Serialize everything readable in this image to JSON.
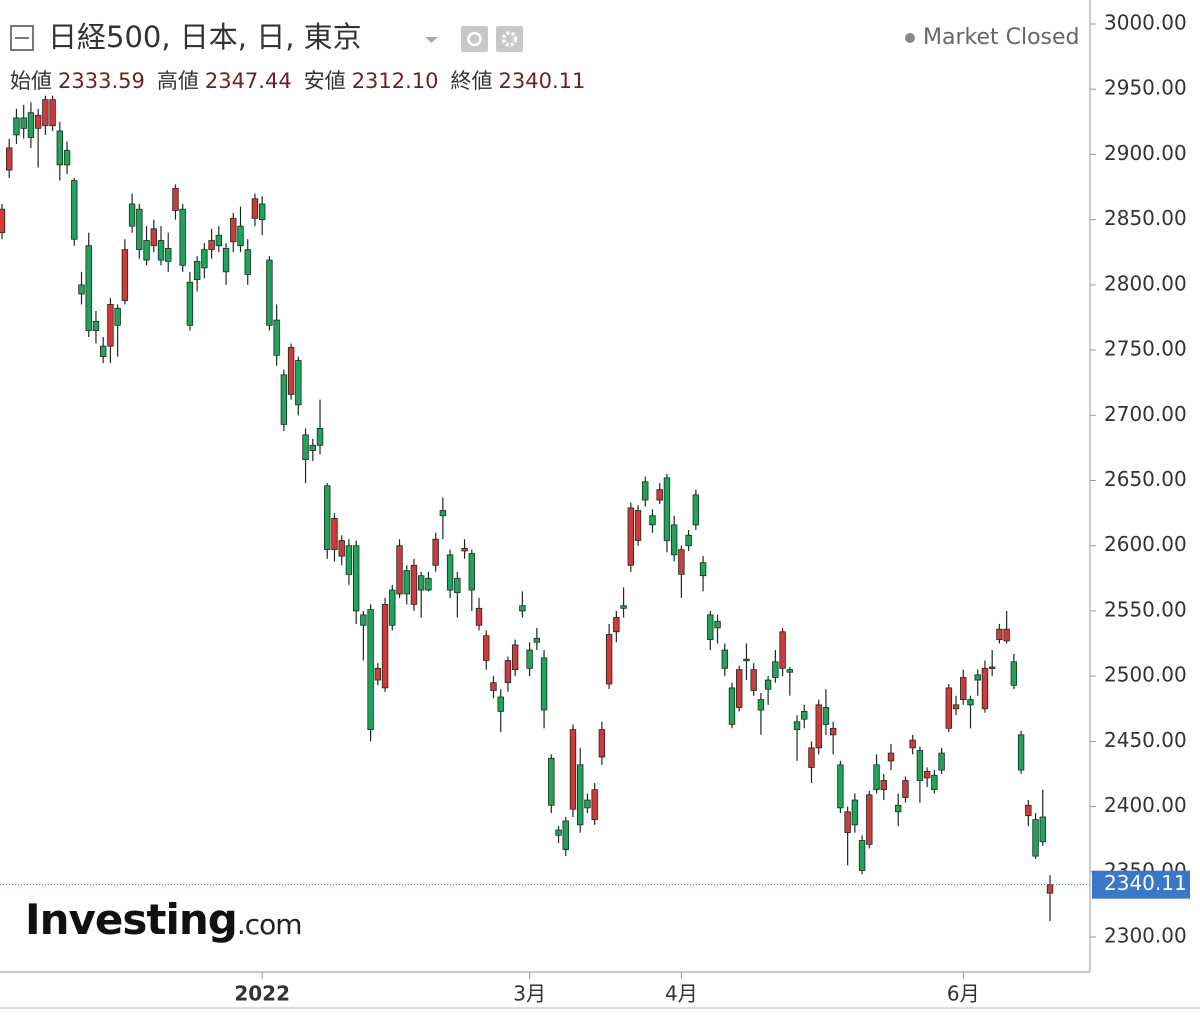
{
  "chart_data": {
    "type": "candlestick",
    "title": "日経500, 日本, 日, 東京",
    "status": "Market Closed",
    "ohlc_header": [
      {
        "name": "始値",
        "text": "2333.59"
      },
      {
        "name": "高値",
        "text": "2347.44"
      },
      {
        "name": "安値",
        "text": "2312.10"
      },
      {
        "name": "終値",
        "text": "2340.11"
      }
    ],
    "watermark": {
      "brand": "Investing",
      "suffix": ".com"
    },
    "up_color": "#d2393b",
    "down_color": "#21a35b",
    "ylim": [
      2300,
      3000
    ],
    "yticks": [
      {
        "value": 2300,
        "label": "2300.00"
      },
      {
        "value": 2350,
        "label": "2350.00"
      },
      {
        "value": 2400,
        "label": "2400.00"
      },
      {
        "value": 2450,
        "label": "2450.00"
      },
      {
        "value": 2500,
        "label": "2500.00"
      },
      {
        "value": 2550,
        "label": "2550.00"
      },
      {
        "value": 2600,
        "label": "2600.00"
      },
      {
        "value": 2650,
        "label": "2650.00"
      },
      {
        "value": 2700,
        "label": "2700.00"
      },
      {
        "value": 2750,
        "label": "2750.00"
      },
      {
        "value": 2800,
        "label": "2800.00"
      },
      {
        "value": 2850,
        "label": "2850.00"
      },
      {
        "value": 2900,
        "label": "2900.00"
      },
      {
        "value": 2950,
        "label": "2950.00"
      },
      {
        "value": 3000,
        "label": "3000.00"
      }
    ],
    "last_price": {
      "value": 2340.11,
      "label": "2340.11"
    },
    "categories": [
      null,
      null,
      null,
      null,
      null,
      null,
      null,
      null,
      null,
      null,
      null,
      null,
      null,
      null,
      null,
      null,
      null,
      null,
      null,
      null,
      null,
      null,
      null,
      null,
      null,
      null,
      null,
      null,
      null,
      null,
      null,
      null,
      null,
      null,
      null,
      null,
      "2022",
      null,
      null,
      null,
      null,
      null,
      null,
      null,
      null,
      null,
      null,
      null,
      null,
      null,
      null,
      null,
      null,
      null,
      null,
      null,
      null,
      null,
      null,
      null,
      null,
      null,
      null,
      null,
      null,
      null,
      null,
      null,
      null,
      null,
      null,
      null,
      null,
      "3月",
      null,
      null,
      null,
      null,
      null,
      null,
      null,
      null,
      null,
      null,
      null,
      null,
      null,
      null,
      null,
      null,
      null,
      null,
      null,
      null,
      "4月",
      null,
      null,
      null,
      null,
      null,
      null,
      null,
      null,
      null,
      null,
      null,
      null,
      null,
      null,
      null,
      null,
      null,
      null,
      null,
      null,
      null,
      null,
      null,
      null,
      null,
      null,
      null,
      null,
      null,
      null,
      null,
      null,
      null,
      null,
      null,
      null,
      null,
      null,
      "6月",
      null,
      null,
      null,
      null,
      null,
      null,
      null,
      null,
      null,
      null,
      null,
      null
    ],
    "ohlc": [
      [
        2840,
        2862,
        2835,
        2858
      ],
      [
        2888,
        2912,
        2882,
        2905
      ],
      [
        2928,
        2935,
        2908,
        2915
      ],
      [
        2928,
        2938,
        2912,
        2920
      ],
      [
        2932,
        2940,
        2905,
        2913
      ],
      [
        2920,
        2935,
        2890,
        2930
      ],
      [
        2922,
        2945,
        2915,
        2942
      ],
      [
        2922,
        2945,
        2918,
        2942
      ],
      [
        2918,
        2925,
        2880,
        2892
      ],
      [
        2903,
        2910,
        2885,
        2892
      ],
      [
        2880,
        2882,
        2830,
        2835
      ],
      [
        2800,
        2810,
        2785,
        2793
      ],
      [
        2830,
        2840,
        2760,
        2765
      ],
      [
        2772,
        2780,
        2755,
        2765
      ],
      [
        2753,
        2760,
        2740,
        2745
      ],
      [
        2753,
        2790,
        2740,
        2785
      ],
      [
        2782,
        2785,
        2745,
        2769
      ],
      [
        2788,
        2835,
        2785,
        2827
      ],
      [
        2862,
        2870,
        2840,
        2845
      ],
      [
        2858,
        2862,
        2820,
        2827
      ],
      [
        2834,
        2845,
        2815,
        2819
      ],
      [
        2830,
        2850,
        2825,
        2843
      ],
      [
        2834,
        2845,
        2815,
        2819
      ],
      [
        2828,
        2840,
        2810,
        2818
      ],
      [
        2857,
        2877,
        2850,
        2874
      ],
      [
        2858,
        2862,
        2810,
        2815
      ],
      [
        2802,
        2810,
        2765,
        2769
      ],
      [
        2818,
        2822,
        2795,
        2804
      ],
      [
        2827,
        2832,
        2805,
        2813
      ],
      [
        2827,
        2843,
        2820,
        2834
      ],
      [
        2838,
        2845,
        2825,
        2830
      ],
      [
        2828,
        2832,
        2800,
        2810
      ],
      [
        2833,
        2855,
        2825,
        2851
      ],
      [
        2845,
        2860,
        2825,
        2830
      ],
      [
        2827,
        2835,
        2800,
        2808
      ],
      [
        2851,
        2870,
        2845,
        2866
      ],
      [
        2862,
        2868,
        2838,
        2850
      ],
      [
        2819,
        2822,
        2765,
        2769
      ],
      [
        2773,
        2785,
        2738,
        2746
      ],
      [
        2731,
        2735,
        2688,
        2693
      ],
      [
        2716,
        2755,
        2712,
        2752
      ],
      [
        2742,
        2745,
        2700,
        2708
      ],
      [
        2685,
        2690,
        2648,
        2666
      ],
      [
        2677,
        2682,
        2665,
        2673
      ],
      [
        2690,
        2712,
        2670,
        2677
      ],
      [
        2646,
        2648,
        2590,
        2597
      ],
      [
        2597,
        2625,
        2588,
        2621
      ],
      [
        2592,
        2608,
        2585,
        2604
      ],
      [
        2600,
        2605,
        2570,
        2578
      ],
      [
        2600,
        2604,
        2540,
        2550
      ],
      [
        2547,
        2550,
        2512,
        2539
      ],
      [
        2551,
        2555,
        2450,
        2459
      ],
      [
        2497,
        2510,
        2493,
        2506
      ],
      [
        2491,
        2560,
        2488,
        2555
      ],
      [
        2566,
        2570,
        2535,
        2539
      ],
      [
        2563,
        2605,
        2560,
        2600
      ],
      [
        2581,
        2585,
        2555,
        2563
      ],
      [
        2555,
        2590,
        2550,
        2585
      ],
      [
        2577,
        2580,
        2545,
        2566
      ],
      [
        2575,
        2580,
        2565,
        2566
      ],
      [
        2585,
        2610,
        2580,
        2605
      ],
      [
        2627,
        2637,
        2605,
        2623
      ],
      [
        2593,
        2597,
        2560,
        2566
      ],
      [
        2575,
        2580,
        2545,
        2564
      ],
      [
        2596,
        2605,
        2590,
        2598
      ],
      [
        2594,
        2597,
        2550,
        2566
      ],
      [
        2539,
        2560,
        2535,
        2552
      ],
      [
        2512,
        2535,
        2505,
        2531
      ],
      [
        2489,
        2500,
        2483,
        2495
      ],
      [
        2484,
        2490,
        2457,
        2473
      ],
      [
        2495,
        2515,
        2488,
        2512
      ],
      [
        2505,
        2528,
        2500,
        2524
      ],
      [
        2554,
        2565,
        2545,
        2550
      ],
      [
        2520,
        2526,
        2500,
        2506
      ],
      [
        2529,
        2537,
        2520,
        2526
      ],
      [
        2514,
        2520,
        2460,
        2474
      ],
      [
        2437,
        2440,
        2395,
        2401
      ],
      [
        2382,
        2385,
        2372,
        2378
      ],
      [
        2389,
        2392,
        2362,
        2367
      ],
      [
        2398,
        2463,
        2392,
        2459
      ],
      [
        2432,
        2445,
        2380,
        2386
      ],
      [
        2405,
        2410,
        2395,
        2399
      ],
      [
        2390,
        2418,
        2386,
        2413
      ],
      [
        2438,
        2465,
        2432,
        2459
      ],
      [
        2494,
        2540,
        2490,
        2532
      ],
      [
        2534,
        2550,
        2526,
        2545
      ],
      [
        2554,
        2568,
        2545,
        2552
      ],
      [
        2585,
        2633,
        2580,
        2629
      ],
      [
        2604,
        2631,
        2600,
        2627
      ],
      [
        2649,
        2653,
        2630,
        2635
      ],
      [
        2623,
        2628,
        2610,
        2616
      ],
      [
        2635,
        2648,
        2632,
        2643
      ],
      [
        2652,
        2655,
        2595,
        2604
      ],
      [
        2616,
        2623,
        2588,
        2593
      ],
      [
        2578,
        2600,
        2560,
        2597
      ],
      [
        2608,
        2612,
        2596,
        2600
      ],
      [
        2639,
        2643,
        2612,
        2616
      ],
      [
        2587,
        2592,
        2565,
        2577
      ],
      [
        2547,
        2550,
        2520,
        2528
      ],
      [
        2542,
        2547,
        2525,
        2537
      ],
      [
        2520,
        2525,
        2500,
        2506
      ],
      [
        2491,
        2495,
        2460,
        2463
      ],
      [
        2476,
        2508,
        2473,
        2505
      ],
      [
        2513,
        2525,
        2497,
        2512
      ],
      [
        2489,
        2510,
        2485,
        2505
      ],
      [
        2482,
        2487,
        2455,
        2474
      ],
      [
        2497,
        2500,
        2478,
        2490
      ],
      [
        2511,
        2520,
        2495,
        2499
      ],
      [
        2506,
        2537,
        2500,
        2534
      ],
      [
        2505,
        2507,
        2485,
        2503
      ],
      [
        2465,
        2470,
        2435,
        2459
      ],
      [
        2473,
        2478,
        2460,
        2467
      ],
      [
        2430,
        2450,
        2418,
        2445
      ],
      [
        2445,
        2482,
        2440,
        2478
      ],
      [
        2476,
        2490,
        2455,
        2463
      ],
      [
        2455,
        2465,
        2440,
        2460
      ],
      [
        2432,
        2435,
        2395,
        2399
      ],
      [
        2380,
        2400,
        2355,
        2396
      ],
      [
        2405,
        2410,
        2380,
        2386
      ],
      [
        2374,
        2378,
        2348,
        2351
      ],
      [
        2371,
        2412,
        2368,
        2409
      ],
      [
        2432,
        2440,
        2410,
        2413
      ],
      [
        2413,
        2425,
        2405,
        2420
      ],
      [
        2435,
        2448,
        2428,
        2441
      ],
      [
        2401,
        2410,
        2385,
        2396
      ],
      [
        2407,
        2423,
        2403,
        2420
      ],
      [
        2445,
        2455,
        2440,
        2451
      ],
      [
        2443,
        2446,
        2403,
        2420
      ],
      [
        2422,
        2430,
        2415,
        2427
      ],
      [
        2424,
        2428,
        2410,
        2413
      ],
      [
        2441,
        2445,
        2425,
        2428
      ],
      [
        2460,
        2494,
        2457,
        2491
      ],
      [
        2475,
        2485,
        2470,
        2478
      ],
      [
        2482,
        2505,
        2478,
        2499
      ],
      [
        2482,
        2485,
        2460,
        2478
      ],
      [
        2501,
        2505,
        2485,
        2497
      ],
      [
        2475,
        2512,
        2472,
        2506
      ],
      [
        2506,
        2520,
        2500,
        2507
      ],
      [
        2528,
        2540,
        2525,
        2536
      ],
      [
        2527,
        2550,
        2525,
        2536
      ],
      [
        2511,
        2517,
        2490,
        2493
      ],
      [
        2455,
        2458,
        2425,
        2428
      ],
      [
        2393,
        2405,
        2385,
        2401
      ],
      [
        2390,
        2395,
        2360,
        2362
      ],
      [
        2392,
        2413,
        2370,
        2373
      ],
      [
        2333.59,
        2347.44,
        2312.1,
        2340.11
      ]
    ]
  }
}
